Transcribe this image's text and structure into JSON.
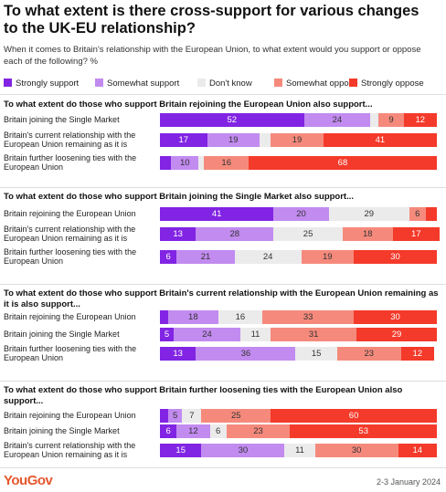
{
  "header": {
    "title": "To what extent is there cross-support for various changes to the UK-EU relationship?",
    "subtitle": "When it comes to Britain's relationship with the European Union, to what extent would you support or oppose each of the following? %"
  },
  "chart_data": [
    {
      "type": "bar",
      "orientation": "horizontal",
      "stacked": true,
      "legend": "top",
      "title": "To what extent do those who support Britain rejoining the European Union also support...",
      "categories": [
        "Britain joining the Single Market",
        "Britain's current relationship with the European Union remaining as it is",
        "Britain further loosening ties with the European Union"
      ],
      "series": [
        {
          "name": "Strongly support",
          "color": "#8224e3",
          "values": [
            52,
            17,
            4
          ]
        },
        {
          "name": "Somewhat support",
          "color": "#c28bf0",
          "values": [
            24,
            19,
            10
          ]
        },
        {
          "name": "Don't know",
          "color": "#ebebeb",
          "values": [
            3,
            4,
            2
          ]
        },
        {
          "name": "Somewhat oppose",
          "color": "#f58a7c",
          "values": [
            9,
            19,
            16
          ]
        },
        {
          "name": "Strongly oppose",
          "color": "#f43a2a",
          "values": [
            12,
            41,
            68
          ]
        }
      ]
    },
    {
      "type": "bar",
      "orientation": "horizontal",
      "stacked": true,
      "title": "To what extent do those who support Britain joining the Single Market also support...",
      "categories": [
        "Britain rejoining the European Union",
        "Britain's current relationship with the European Union remaining as it is",
        "Britain further loosening ties with the European Union"
      ],
      "series": [
        {
          "name": "Strongly support",
          "color": "#8224e3",
          "values": [
            41,
            13,
            6
          ]
        },
        {
          "name": "Somewhat support",
          "color": "#c28bf0",
          "values": [
            20,
            28,
            21
          ]
        },
        {
          "name": "Don't know",
          "color": "#ebebeb",
          "values": [
            29,
            25,
            24
          ]
        },
        {
          "name": "Somewhat oppose",
          "color": "#f58a7c",
          "values": [
            6,
            18,
            19
          ]
        },
        {
          "name": "Strongly oppose",
          "color": "#f43a2a",
          "values": [
            4,
            17,
            30
          ]
        }
      ]
    },
    {
      "type": "bar",
      "orientation": "horizontal",
      "stacked": true,
      "title": "To what extent do those who support Britain's current relationship with the European Union remaining as it is also support...",
      "categories": [
        "Britain rejoining the European Union",
        "Britain joining the Single Market",
        "Britain further loosening ties with the European Union"
      ],
      "series": [
        {
          "name": "Strongly support",
          "color": "#8224e3",
          "values": [
            3,
            5,
            13
          ]
        },
        {
          "name": "Somewhat support",
          "color": "#c28bf0",
          "values": [
            18,
            24,
            36
          ]
        },
        {
          "name": "Don't know",
          "color": "#ebebeb",
          "values": [
            16,
            11,
            15
          ]
        },
        {
          "name": "Somewhat oppose",
          "color": "#f58a7c",
          "values": [
            33,
            31,
            23
          ]
        },
        {
          "name": "Strongly oppose",
          "color": "#f43a2a",
          "values": [
            30,
            29,
            12
          ]
        }
      ]
    },
    {
      "type": "bar",
      "orientation": "horizontal",
      "stacked": true,
      "title": "To what extent do those who support Britain further loosening ties with the European Union also support...",
      "categories": [
        "Britain rejoining the European Union",
        "Britain joining the Single Market",
        "Britain's current relationship with the European Union remaining as it is"
      ],
      "series": [
        {
          "name": "Strongly support",
          "color": "#8224e3",
          "values": [
            3,
            6,
            15
          ]
        },
        {
          "name": "Somewhat support",
          "color": "#c28bf0",
          "values": [
            5,
            12,
            30
          ]
        },
        {
          "name": "Don't know",
          "color": "#ebebeb",
          "values": [
            7,
            6,
            11
          ]
        },
        {
          "name": "Somewhat oppose",
          "color": "#f58a7c",
          "values": [
            25,
            23,
            30
          ]
        },
        {
          "name": "Strongly oppose",
          "color": "#f43a2a",
          "values": [
            60,
            53,
            14
          ]
        }
      ]
    }
  ],
  "footer": {
    "brand": "YouGov",
    "date": "2-3 January 2024"
  }
}
